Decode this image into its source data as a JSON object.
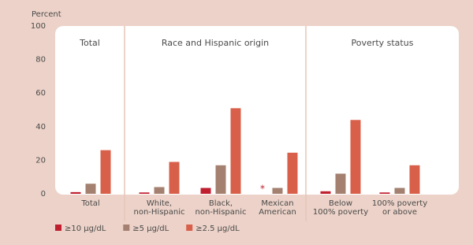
{
  "chart_data": {
    "type": "bar",
    "y_label": "Percent",
    "ylim": [
      0,
      100
    ],
    "yticks": [
      0,
      20,
      40,
      60,
      80,
      100
    ],
    "groups": [
      {
        "name": "Total",
        "count": 1
      },
      {
        "name": "Race and Hispanic origin",
        "count": 3
      },
      {
        "name": "Poverty status",
        "count": 2
      }
    ],
    "categories": [
      [
        "Total"
      ],
      [
        "White,",
        "non-Hispanic"
      ],
      [
        "Black,",
        "non-Hispanic"
      ],
      [
        "Mexican",
        "American"
      ],
      [
        "Below",
        "100% poverty"
      ],
      [
        "100% poverty",
        "or above"
      ]
    ],
    "series": [
      {
        "name": "≥10 μg/dL",
        "color": "#c01f2f",
        "values": [
          1,
          0.8,
          3.5,
          null,
          1.5,
          0.8
        ],
        "value_labels": [
          null,
          null,
          null,
          "*",
          null,
          null
        ]
      },
      {
        "name": "≥5 μg/dL",
        "color": "#a3806f",
        "values": [
          6,
          4,
          17,
          3.5,
          12,
          3.5
        ]
      },
      {
        "name": "≥2.5 μg/dL",
        "color": "#d8604a",
        "values": [
          26,
          19,
          51,
          24.5,
          44,
          17
        ]
      }
    ]
  }
}
